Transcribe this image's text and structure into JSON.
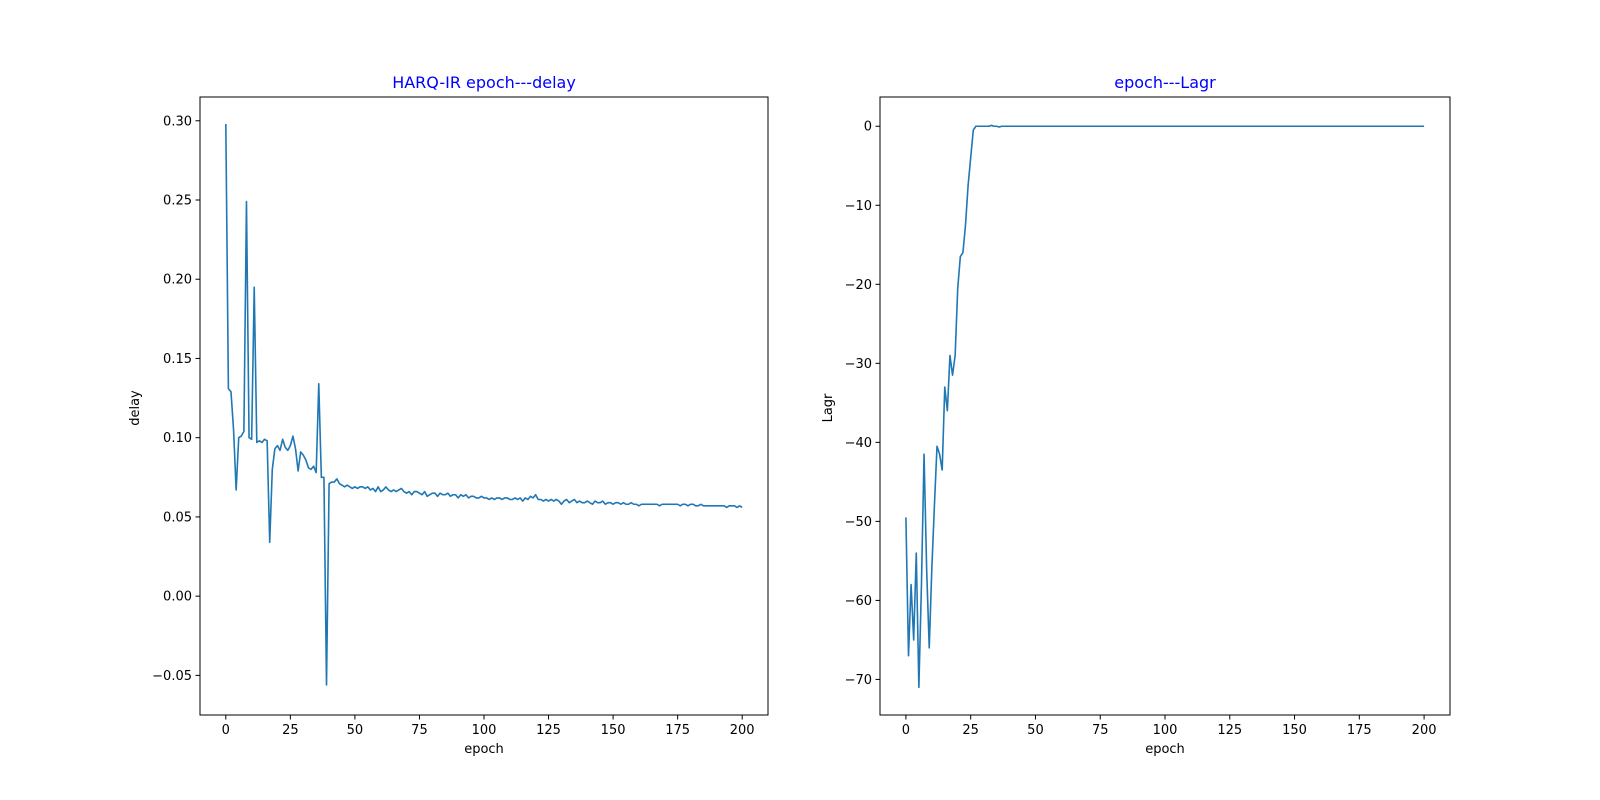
{
  "colors": {
    "line": "#1f77b4",
    "title": "#0000ff",
    "axis": "#000000",
    "background": "#ffffff"
  },
  "chart_data": [
    {
      "type": "line",
      "title": "HARQ-IR epoch---delay",
      "xlabel": "epoch",
      "ylabel": "delay",
      "xlim": [
        -10,
        210
      ],
      "ylim": [
        -0.075,
        0.315
      ],
      "xticks": [
        0,
        25,
        50,
        75,
        100,
        125,
        150,
        175,
        200
      ],
      "xtick_labels": [
        "0",
        "25",
        "50",
        "75",
        "100",
        "125",
        "150",
        "175",
        "200"
      ],
      "yticks": [
        -0.05,
        0.0,
        0.05,
        0.1,
        0.15,
        0.2,
        0.25,
        0.3
      ],
      "ytick_labels": [
        "−0.05",
        "0.00",
        "0.05",
        "0.10",
        "0.15",
        "0.20",
        "0.25",
        "0.30"
      ],
      "grid": false,
      "series": [
        {
          "x": [
            0,
            1,
            2,
            3,
            4,
            5,
            6,
            7,
            8,
            9,
            10,
            11,
            12,
            13,
            14,
            15,
            16,
            17,
            18,
            19,
            20,
            21,
            22,
            23,
            24,
            25,
            26,
            27,
            28,
            29,
            30,
            31,
            32,
            33,
            34,
            35,
            36,
            37,
            38,
            39,
            40,
            41,
            42,
            43,
            44,
            45,
            46,
            47,
            48,
            49,
            50,
            51,
            52,
            53,
            54,
            55,
            56,
            57,
            58,
            59,
            60,
            61,
            62,
            63,
            64,
            65,
            66,
            67,
            68,
            69,
            70,
            71,
            72,
            73,
            74,
            75,
            76,
            77,
            78,
            79,
            80,
            81,
            82,
            83,
            84,
            85,
            86,
            87,
            88,
            89,
            90,
            91,
            92,
            93,
            94,
            95,
            96,
            97,
            98,
            99,
            100,
            101,
            102,
            103,
            104,
            105,
            106,
            107,
            108,
            109,
            110,
            111,
            112,
            113,
            114,
            115,
            116,
            117,
            118,
            119,
            120,
            121,
            122,
            123,
            124,
            125,
            126,
            127,
            128,
            129,
            130,
            131,
            132,
            133,
            134,
            135,
            136,
            137,
            138,
            139,
            140,
            141,
            142,
            143,
            144,
            145,
            146,
            147,
            148,
            149,
            150,
            151,
            152,
            153,
            154,
            155,
            156,
            157,
            158,
            159,
            160,
            161,
            162,
            163,
            164,
            165,
            166,
            167,
            168,
            169,
            170,
            171,
            172,
            173,
            174,
            175,
            176,
            177,
            178,
            179,
            180,
            181,
            182,
            183,
            184,
            185,
            186,
            187,
            188,
            189,
            190,
            191,
            192,
            193,
            194,
            195,
            196,
            197,
            198,
            199,
            200
          ],
          "y": [
            0.298,
            0.131,
            0.129,
            0.105,
            0.067,
            0.1,
            0.101,
            0.104,
            0.249,
            0.1,
            0.099,
            0.195,
            0.097,
            0.098,
            0.097,
            0.099,
            0.098,
            0.034,
            0.08,
            0.093,
            0.095,
            0.092,
            0.099,
            0.094,
            0.092,
            0.095,
            0.101,
            0.093,
            0.079,
            0.091,
            0.089,
            0.086,
            0.081,
            0.08,
            0.082,
            0.078,
            0.134,
            0.075,
            0.075,
            -0.056,
            0.071,
            0.072,
            0.072,
            0.074,
            0.071,
            0.07,
            0.069,
            0.07,
            0.069,
            0.068,
            0.069,
            0.068,
            0.069,
            0.069,
            0.068,
            0.069,
            0.067,
            0.068,
            0.066,
            0.069,
            0.066,
            0.067,
            0.069,
            0.067,
            0.066,
            0.067,
            0.066,
            0.067,
            0.068,
            0.066,
            0.065,
            0.066,
            0.064,
            0.066,
            0.066,
            0.065,
            0.064,
            0.066,
            0.063,
            0.064,
            0.065,
            0.065,
            0.063,
            0.065,
            0.064,
            0.064,
            0.065,
            0.063,
            0.064,
            0.064,
            0.062,
            0.064,
            0.063,
            0.064,
            0.062,
            0.063,
            0.063,
            0.062,
            0.062,
            0.063,
            0.062,
            0.062,
            0.061,
            0.062,
            0.061,
            0.062,
            0.062,
            0.061,
            0.062,
            0.062,
            0.061,
            0.061,
            0.062,
            0.061,
            0.062,
            0.06,
            0.062,
            0.061,
            0.063,
            0.062,
            0.064,
            0.061,
            0.061,
            0.06,
            0.061,
            0.06,
            0.061,
            0.06,
            0.061,
            0.06,
            0.058,
            0.06,
            0.061,
            0.059,
            0.06,
            0.061,
            0.059,
            0.06,
            0.059,
            0.059,
            0.06,
            0.059,
            0.058,
            0.06,
            0.059,
            0.059,
            0.06,
            0.058,
            0.059,
            0.059,
            0.058,
            0.059,
            0.059,
            0.058,
            0.059,
            0.058,
            0.058,
            0.059,
            0.058,
            0.058,
            0.057,
            0.058,
            0.058,
            0.058,
            0.058,
            0.058,
            0.058,
            0.058,
            0.057,
            0.058,
            0.058,
            0.058,
            0.058,
            0.058,
            0.058,
            0.058,
            0.057,
            0.058,
            0.058,
            0.057,
            0.058,
            0.058,
            0.057,
            0.057,
            0.058,
            0.057,
            0.057,
            0.057,
            0.057,
            0.057,
            0.057,
            0.057,
            0.057,
            0.057,
            0.056,
            0.057,
            0.057,
            0.057,
            0.056,
            0.057,
            0.056
          ]
        }
      ]
    },
    {
      "type": "line",
      "title": "epoch---Lagr",
      "xlabel": "epoch",
      "ylabel": "Lagr",
      "xlim": [
        -10,
        210
      ],
      "ylim": [
        -74.5,
        3.7
      ],
      "xticks": [
        0,
        25,
        50,
        75,
        100,
        125,
        150,
        175,
        200
      ],
      "xtick_labels": [
        "0",
        "25",
        "50",
        "75",
        "100",
        "125",
        "150",
        "175",
        "200"
      ],
      "yticks": [
        -70,
        -60,
        -50,
        -40,
        -30,
        -20,
        -10,
        0
      ],
      "ytick_labels": [
        "−70",
        "−60",
        "−50",
        "−40",
        "−30",
        "−20",
        "−10",
        "0"
      ],
      "grid": false,
      "series": [
        {
          "x": [
            0,
            1,
            2,
            3,
            4,
            5,
            6,
            7,
            8,
            9,
            10,
            11,
            12,
            13,
            14,
            15,
            16,
            17,
            18,
            19,
            20,
            21,
            22,
            23,
            24,
            25,
            26,
            27,
            28,
            29,
            30,
            31,
            32,
            33,
            34,
            35,
            36,
            37,
            38,
            39,
            40,
            45,
            50,
            60,
            70,
            80,
            90,
            100,
            110,
            120,
            130,
            140,
            150,
            160,
            170,
            180,
            190,
            200
          ],
          "y": [
            -49.5,
            -67,
            -58,
            -65,
            -54,
            -71,
            -58,
            -41.5,
            -56,
            -66,
            -56,
            -48,
            -40.5,
            -41.5,
            -43.5,
            -33,
            -36,
            -29,
            -31.5,
            -29,
            -20.5,
            -16.5,
            -16,
            -12.5,
            -7.5,
            -4,
            -0.5,
            0,
            0,
            0,
            0,
            0,
            0,
            0.1,
            0,
            0,
            -0.1,
            0,
            0,
            0,
            0,
            0,
            0,
            0,
            0,
            0,
            0,
            0,
            0,
            0,
            0,
            0,
            0,
            0,
            0,
            0,
            0,
            0
          ]
        }
      ]
    }
  ]
}
